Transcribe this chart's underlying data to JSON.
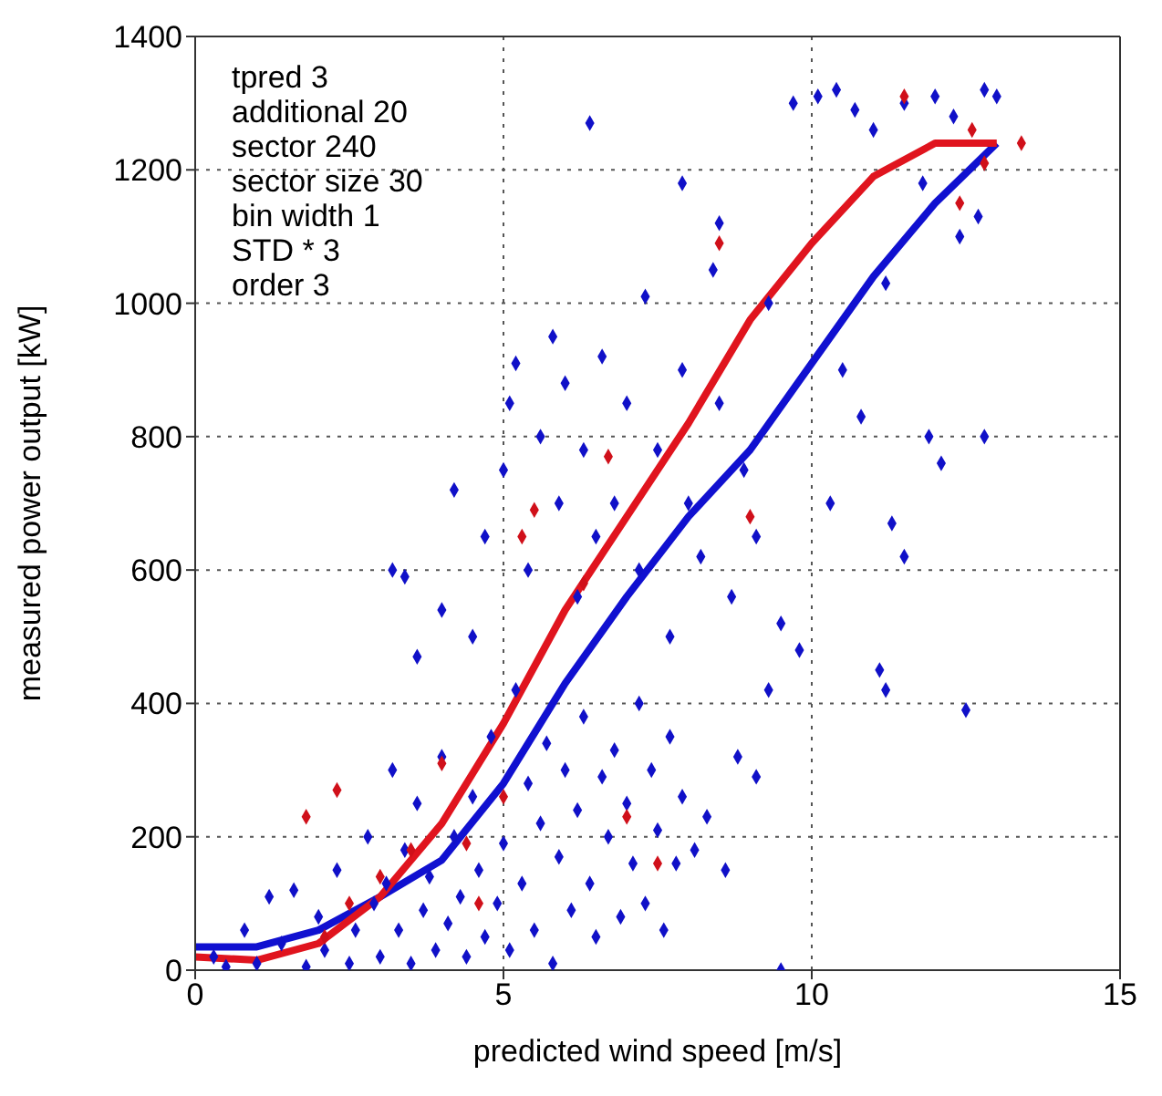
{
  "chart_data": {
    "type": "scatter",
    "xlabel": "predicted wind speed [m/s]",
    "ylabel": "measured power output [kW]",
    "xlim": [
      0,
      15
    ],
    "xticks": [
      0,
      5,
      10,
      15
    ],
    "ylim": [
      0,
      1400
    ],
    "yticks": [
      0,
      200,
      400,
      600,
      800,
      1000,
      1200,
      1400
    ],
    "grid": true,
    "annotations": [
      "tpred 3",
      "additional 20",
      "sector 240",
      "sector size 30",
      "bin width 1",
      "STD * 3",
      "order 3"
    ],
    "series": [
      {
        "marker": "diamond",
        "color": "#1010c8",
        "x": [
          0.3,
          0.5,
          0.8,
          1,
          1.2,
          1.4,
          1.6,
          1.8,
          2,
          2.1,
          2.3,
          2.5,
          2.6,
          2.8,
          2.9,
          3,
          3.1,
          3.2,
          3.3,
          3.4,
          3.5,
          3.6,
          3.7,
          3.8,
          3.9,
          4,
          4.1,
          4.2,
          4.3,
          4.4,
          4.5,
          4.6,
          4.7,
          4.8,
          4.9,
          5,
          5.1,
          5.2,
          5.3,
          5.4,
          5.5,
          5.6,
          5.7,
          5.8,
          5.9,
          6,
          6.1,
          6.2,
          6.3,
          6.4,
          6.5,
          6.6,
          6.7,
          6.8,
          6.9,
          7,
          7.1,
          7.2,
          7.3,
          7.4,
          7.5,
          7.6,
          7.7,
          7.8,
          7.9,
          8.1,
          8.3,
          8.6,
          8.8,
          9.1,
          9.3,
          9.5,
          3.2,
          3.4,
          3.6,
          4,
          4.2,
          4.5,
          4.7,
          5,
          5.1,
          5.2,
          5.4,
          5.6,
          5.8,
          5.9,
          6,
          6.2,
          6.3,
          6.5,
          6.6,
          6.8,
          7,
          7.2,
          7.3,
          7.5,
          7.7,
          7.9,
          8,
          8.2,
          8.4,
          8.5,
          8.7,
          8.9,
          9.1,
          9.3,
          9.5,
          9.8,
          10.3,
          10.5,
          10.8,
          11.2,
          11.3,
          11.5,
          11.1,
          11.2,
          12.5,
          12.8,
          6.4,
          7.9,
          8.5,
          9.7,
          10.1,
          10.4,
          10.7,
          11,
          11.5,
          12,
          12.3,
          12.8,
          13,
          11.8,
          12.4,
          12.7,
          11.9,
          12.1
        ],
        "values": [
          20,
          5,
          60,
          10,
          110,
          40,
          120,
          5,
          80,
          30,
          150,
          10,
          60,
          200,
          100,
          20,
          130,
          300,
          60,
          180,
          10,
          250,
          90,
          140,
          30,
          320,
          70,
          200,
          110,
          20,
          260,
          150,
          50,
          350,
          100,
          190,
          30,
          420,
          130,
          280,
          60,
          220,
          340,
          10,
          170,
          300,
          90,
          240,
          380,
          130,
          50,
          290,
          200,
          330,
          80,
          250,
          160,
          400,
          100,
          300,
          210,
          60,
          350,
          160,
          260,
          180,
          230,
          150,
          320,
          290,
          420,
          0,
          600,
          590,
          470,
          540,
          720,
          500,
          650,
          750,
          850,
          910,
          600,
          800,
          950,
          700,
          880,
          560,
          780,
          650,
          920,
          700,
          850,
          600,
          1010,
          780,
          500,
          900,
          700,
          620,
          1050,
          850,
          560,
          750,
          650,
          1000,
          520,
          480,
          700,
          900,
          830,
          1030,
          670,
          620,
          450,
          420,
          390,
          800,
          1270,
          1180,
          1120,
          1300,
          1310,
          1320,
          1290,
          1260,
          1300,
          1310,
          1280,
          1320,
          1310,
          1180,
          1100,
          1130,
          800,
          760
        ]
      },
      {
        "marker": "diamond",
        "color": "#d0101a",
        "x": [
          1.8,
          2.3,
          2.5,
          3,
          3.5,
          4,
          4.4,
          5,
          5.3,
          5.5,
          6.3,
          7,
          7.5,
          8.5,
          9,
          11.5,
          12.6,
          12.8,
          13.4,
          12.4,
          6.7,
          2.1,
          4.6
        ],
        "values": [
          230,
          270,
          100,
          140,
          180,
          310,
          190,
          260,
          650,
          690,
          580,
          230,
          160,
          1090,
          680,
          1310,
          1260,
          1210,
          1240,
          1150,
          770,
          50,
          100
        ]
      },
      {
        "type": "line",
        "marker": "none",
        "color": "#1010d0",
        "x": [
          0,
          1,
          2,
          3,
          4,
          5,
          6,
          7,
          8,
          9,
          10,
          11,
          12,
          13
        ],
        "values": [
          35,
          35,
          60,
          110,
          165,
          280,
          430,
          560,
          680,
          780,
          910,
          1040,
          1150,
          1240
        ]
      },
      {
        "type": "line",
        "marker": "none",
        "color": "#e0141e",
        "x": [
          0,
          1,
          2,
          3,
          4,
          5,
          6,
          7,
          8,
          9,
          10,
          11,
          12,
          13
        ],
        "values": [
          20,
          15,
          40,
          110,
          220,
          370,
          540,
          680,
          820,
          975,
          1090,
          1190,
          1240,
          1240
        ]
      }
    ]
  }
}
